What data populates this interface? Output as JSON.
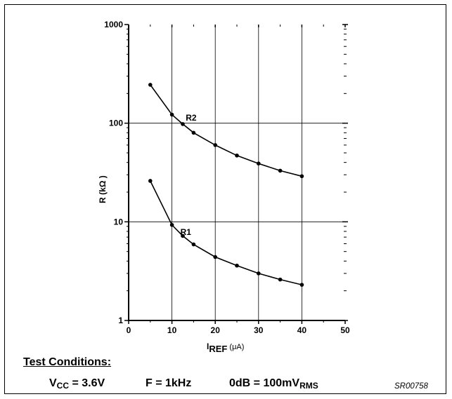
{
  "chart_data": {
    "type": "line",
    "y_scale": "log",
    "xlim": [
      0,
      50
    ],
    "ylim": [
      1,
      1000
    ],
    "x_ticks": [
      "0",
      "10",
      "20",
      "30",
      "40",
      "50"
    ],
    "y_ticks": [
      "1",
      "10",
      "100",
      "1000"
    ],
    "xlabel_main": "I",
    "xlabel_sub": "REF",
    "xlabel_unit": "(μA)",
    "ylabel": "R  (kΩ    )",
    "grid": true,
    "series": [
      {
        "name": "R2",
        "x": [
          5,
          10,
          12.5,
          15,
          20,
          25,
          30,
          35,
          40
        ],
        "y": [
          245,
          122,
          98,
          80,
          60,
          47,
          39,
          33,
          29
        ]
      },
      {
        "name": "R1",
        "x": [
          5,
          10,
          12.5,
          15,
          20,
          25,
          30,
          35,
          40
        ],
        "y": [
          26,
          9.3,
          7.2,
          5.9,
          4.4,
          3.6,
          3.0,
          2.6,
          2.3
        ]
      }
    ]
  },
  "test_conditions": {
    "title": "Test Conditions:",
    "vcc_prefix": "V",
    "vcc_sub": "CC",
    "vcc_value": " = 3.6V",
    "freq": "F = 1kHz",
    "odb_prefix": "0dB = 100mV",
    "odb_sub": "RMS"
  },
  "figure_code": "SR00758"
}
